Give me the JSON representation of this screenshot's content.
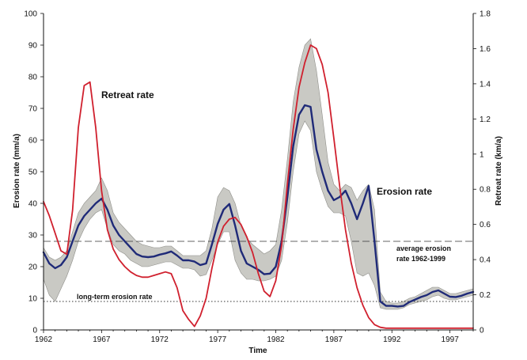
{
  "chart_data": {
    "type": "line",
    "xlabel": "Time",
    "ylabel_left": "Erosion rate (mm/a)",
    "ylabel_right": "Retreat rate (km/a)",
    "xlim": [
      1962,
      1999
    ],
    "ylim_left": [
      0,
      100
    ],
    "ylim_right": [
      0,
      1.8
    ],
    "x_ticks": [
      "1962",
      "1967",
      "1972",
      "1977",
      "1982",
      "1987",
      "1992",
      "1997"
    ],
    "y_left_ticks": [
      "0",
      "10",
      "20",
      "30",
      "40",
      "50",
      "60",
      "70",
      "80",
      "90",
      "100"
    ],
    "y_right_ticks": [
      "0",
      "0.2",
      "0.4",
      "0.6",
      "0.8",
      "1",
      "1.2",
      "1.4",
      "1.6",
      "1.8"
    ],
    "grid": false,
    "series": [
      {
        "name": "Erosion rate",
        "axis": "left",
        "color": "#1f2a78",
        "x": [
          1962,
          1962.5,
          1963,
          1963.5,
          1964,
          1964.5,
          1965,
          1965.5,
          1966,
          1966.5,
          1967,
          1967.5,
          1968,
          1968.5,
          1969,
          1969.5,
          1970,
          1970.5,
          1971,
          1971.5,
          1972,
          1972.5,
          1973,
          1973.5,
          1974,
          1974.5,
          1975,
          1975.5,
          1976,
          1976.5,
          1977,
          1977.5,
          1978,
          1978.5,
          1979,
          1979.5,
          1980,
          1980.5,
          1981,
          1981.5,
          1982,
          1982.5,
          1983,
          1983.5,
          1984,
          1984.5,
          1985,
          1985.5,
          1986,
          1986.5,
          1987,
          1987.5,
          1988,
          1988.5,
          1989,
          1989.5,
          1990,
          1990.5,
          1991,
          1991.5,
          1992,
          1992.5,
          1993,
          1993.5,
          1994,
          1994.5,
          1995,
          1995.5,
          1996,
          1996.5,
          1997,
          1997.5,
          1998,
          1998.5,
          1999
        ],
        "values": [
          24.5,
          21,
          19.5,
          20.5,
          23,
          28,
          33,
          36,
          38,
          40,
          41.5,
          38,
          33,
          30,
          28,
          26,
          24,
          23.2,
          23,
          23.2,
          23.8,
          24.2,
          24.8,
          23.5,
          22,
          22,
          21.6,
          20.5,
          21,
          27,
          33.5,
          38,
          39.8,
          33,
          25,
          21,
          20,
          19,
          17.6,
          17.8,
          20,
          28,
          42,
          58,
          68,
          71,
          70.5,
          57,
          50,
          44,
          41,
          42,
          44,
          40,
          35,
          40,
          45.5,
          28,
          9,
          7.6,
          7.6,
          7.4,
          7.6,
          8.8,
          9.6,
          10.4,
          11,
          12,
          12.5,
          11.5,
          10.5,
          10.4,
          10.8,
          11.5,
          12
        ]
      },
      {
        "name": "Retreat rate",
        "axis": "right",
        "color": "#d0202e",
        "x": [
          1962,
          1962.5,
          1963,
          1963.5,
          1964,
          1964.5,
          1965,
          1965.5,
          1966,
          1966.5,
          1967,
          1967.5,
          1968,
          1968.5,
          1969,
          1969.5,
          1970,
          1970.5,
          1971,
          1971.5,
          1972,
          1972.5,
          1973,
          1973.5,
          1974,
          1974.5,
          1975,
          1975.5,
          1976,
          1976.5,
          1977,
          1977.5,
          1978,
          1978.5,
          1979,
          1979.5,
          1980,
          1980.5,
          1981,
          1981.5,
          1982,
          1982.5,
          1983,
          1983.5,
          1984,
          1984.5,
          1985,
          1985.5,
          1986,
          1986.5,
          1987,
          1987.5,
          1988,
          1988.5,
          1989,
          1989.5,
          1990,
          1990.5,
          1991,
          1991.5,
          1992,
          1992.5,
          1993,
          1993.5,
          1994,
          1994.5,
          1995,
          1995.5,
          1996,
          1996.5,
          1997,
          1997.5,
          1998,
          1998.5,
          1999
        ],
        "values": [
          0.73,
          0.65,
          0.55,
          0.45,
          0.43,
          0.68,
          1.15,
          1.39,
          1.41,
          1.15,
          0.79,
          0.57,
          0.46,
          0.4,
          0.36,
          0.33,
          0.31,
          0.3,
          0.3,
          0.31,
          0.32,
          0.33,
          0.32,
          0.24,
          0.11,
          0.06,
          0.02,
          0.08,
          0.18,
          0.35,
          0.5,
          0.59,
          0.63,
          0.64,
          0.6,
          0.53,
          0.44,
          0.32,
          0.22,
          0.19,
          0.28,
          0.48,
          0.83,
          1.14,
          1.38,
          1.52,
          1.62,
          1.6,
          1.51,
          1.35,
          1.09,
          0.82,
          0.57,
          0.38,
          0.24,
          0.14,
          0.07,
          0.03,
          0.015,
          0.01,
          0.01,
          0.01,
          0.01,
          0.01,
          0.01,
          0.01,
          0.01,
          0.01,
          0.01,
          0.01,
          0.01,
          0.01,
          0.01,
          0.01,
          0.01
        ]
      }
    ],
    "band": {
      "axis": "left",
      "color": "#c9c9c4",
      "x": [
        1962,
        1962.5,
        1963,
        1963.5,
        1964,
        1964.5,
        1965,
        1965.5,
        1966,
        1966.5,
        1967,
        1967.5,
        1968,
        1968.5,
        1969,
        1969.5,
        1970,
        1970.5,
        1971,
        1971.5,
        1972,
        1972.5,
        1973,
        1973.5,
        1974,
        1974.5,
        1975,
        1975.5,
        1976,
        1976.5,
        1977,
        1977.5,
        1978,
        1978.5,
        1979,
        1979.5,
        1980,
        1980.5,
        1981,
        1981.5,
        1982,
        1982.5,
        1983,
        1983.5,
        1984,
        1984.5,
        1985,
        1985.5,
        1986,
        1986.5,
        1987,
        1987.5,
        1988,
        1988.5,
        1989,
        1989.5,
        1990,
        1990.5,
        1991,
        1991.5,
        1992,
        1992.5,
        1993,
        1993.5,
        1994,
        1994.5,
        1995,
        1995.5,
        1996,
        1996.5,
        1997,
        1997.5,
        1998,
        1998.5,
        1999
      ],
      "lower": [
        16,
        11,
        9,
        13,
        17,
        22,
        28,
        32,
        35,
        37,
        38,
        32,
        27,
        25,
        24,
        22,
        21,
        20,
        20,
        20.5,
        21,
        21.5,
        21.5,
        20.5,
        19.5,
        19.5,
        19,
        17,
        17.5,
        22,
        27,
        31,
        31,
        22,
        18,
        16,
        16,
        15.5,
        15.5,
        16,
        17,
        22,
        34,
        50,
        62,
        66,
        63,
        50,
        44,
        39,
        37,
        37,
        36,
        28,
        18,
        17,
        18,
        14,
        7,
        6.5,
        6.5,
        6.5,
        7,
        8,
        8.5,
        9,
        9.5,
        10.5,
        11,
        10,
        9.5,
        9.5,
        10,
        10.5,
        11
      ],
      "upper": [
        26,
        23,
        22,
        23,
        25,
        31,
        37,
        40,
        42,
        44,
        48,
        44,
        37,
        34,
        32,
        30,
        28,
        27,
        26.5,
        26,
        26,
        26.5,
        26.5,
        25,
        23.5,
        23.5,
        23.5,
        23.5,
        25,
        32,
        42,
        45,
        44,
        40,
        33,
        29,
        27,
        25.5,
        24,
        25,
        27,
        38,
        54,
        72,
        83,
        90,
        92,
        82,
        68,
        53,
        46,
        44,
        46,
        45,
        41,
        44,
        46,
        38,
        12,
        9,
        8.5,
        8.5,
        9,
        10,
        10.5,
        11.5,
        12.5,
        13.5,
        13.5,
        12.5,
        11.5,
        11.5,
        12,
        12.5,
        13
      ]
    },
    "reference_lines": [
      {
        "name": "average erosion rate 1962-1999",
        "axis": "left",
        "value": 28,
        "style": "dashed"
      },
      {
        "name": "long-term erosion rate",
        "axis": "left",
        "value": 9,
        "style": "dotted"
      }
    ],
    "annotations": {
      "retreat": "Retreat rate",
      "erosion": "Erosion rate",
      "average_line1": "average erosion",
      "average_line2": "rate 1962-1999",
      "longterm": "long-term erosion rate"
    }
  }
}
